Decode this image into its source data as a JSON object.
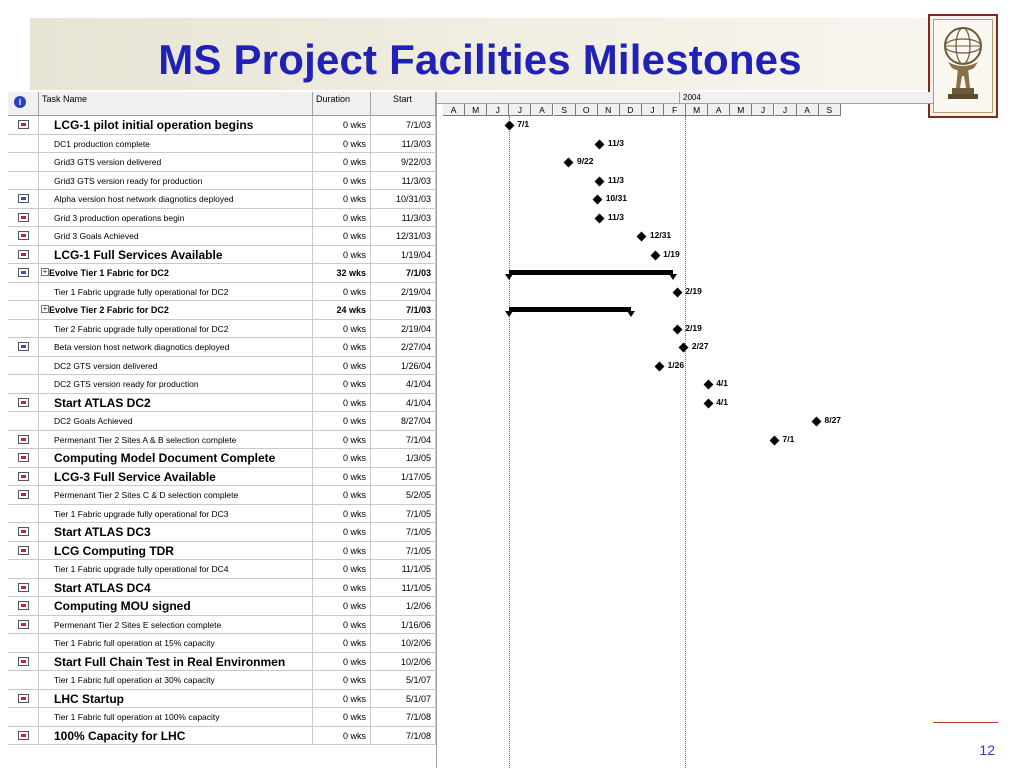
{
  "slide": {
    "title": "MS Project Facilities Milestones",
    "page_number": "12"
  },
  "table": {
    "headers": {
      "info": "i",
      "task": "Task Name",
      "duration": "Duration",
      "start": "Start"
    },
    "rows": [
      {
        "name": "LCG-1 pilot initial operation begins",
        "duration": "0 wks",
        "start": "7/1/03",
        "style": "bold",
        "icon": "red"
      },
      {
        "name": "DC1 production complete",
        "duration": "0 wks",
        "start": "11/3/03",
        "style": "normal",
        "icon": ""
      },
      {
        "name": "Grid3 GTS version delivered",
        "duration": "0 wks",
        "start": "9/22/03",
        "style": "normal",
        "icon": ""
      },
      {
        "name": "Grid3 GTS version ready for production",
        "duration": "0 wks",
        "start": "11/3/03",
        "style": "normal",
        "icon": ""
      },
      {
        "name": "Alpha version host network diagnotics deployed",
        "duration": "0 wks",
        "start": "10/31/03",
        "style": "normal",
        "icon": "blue"
      },
      {
        "name": "Grid 3 production operations begin",
        "duration": "0 wks",
        "start": "11/3/03",
        "style": "normal",
        "icon": "red"
      },
      {
        "name": "Grid 3 Goals Achieved",
        "duration": "0 wks",
        "start": "12/31/03",
        "style": "normal",
        "icon": "red"
      },
      {
        "name": "LCG-1 Full Services Available",
        "duration": "0 wks",
        "start": "1/19/04",
        "style": "bold",
        "icon": "red"
      },
      {
        "name": "Evolve Tier 1 Fabric for DC2",
        "duration": "32 wks",
        "start": "7/1/03",
        "style": "summary",
        "icon": "blue"
      },
      {
        "name": "Tier 1 Fabric upgrade fully operational for DC2",
        "duration": "0 wks",
        "start": "2/19/04",
        "style": "normal",
        "icon": ""
      },
      {
        "name": "Evolve Tier 2 Fabric for DC2",
        "duration": "24 wks",
        "start": "7/1/03",
        "style": "summary",
        "icon": ""
      },
      {
        "name": "Tier 2 Fabric upgrade fully operational for DC2",
        "duration": "0 wks",
        "start": "2/19/04",
        "style": "normal",
        "icon": ""
      },
      {
        "name": "Beta version host network diagnotics deployed",
        "duration": "0 wks",
        "start": "2/27/04",
        "style": "normal",
        "icon": "blue"
      },
      {
        "name": "DC2 GTS version delivered",
        "duration": "0 wks",
        "start": "1/26/04",
        "style": "normal",
        "icon": ""
      },
      {
        "name": "DC2 GTS version ready for production",
        "duration": "0 wks",
        "start": "4/1/04",
        "style": "normal",
        "icon": ""
      },
      {
        "name": "Start ATLAS DC2",
        "duration": "0 wks",
        "start": "4/1/04",
        "style": "bold",
        "icon": "red"
      },
      {
        "name": "DC2 Goals Achieved",
        "duration": "0 wks",
        "start": "8/27/04",
        "style": "normal",
        "icon": ""
      },
      {
        "name": "Permenant Tier 2 Sites A & B selection complete",
        "duration": "0 wks",
        "start": "7/1/04",
        "style": "normal",
        "icon": "red"
      },
      {
        "name": "Computing Model  Document Complete",
        "duration": "0 wks",
        "start": "1/3/05",
        "style": "bold",
        "icon": "red"
      },
      {
        "name": "LCG-3 Full Service Available",
        "duration": "0 wks",
        "start": "1/17/05",
        "style": "bold",
        "icon": "red"
      },
      {
        "name": "Permenant Tier 2 Sites C & D selection complete",
        "duration": "0 wks",
        "start": "5/2/05",
        "style": "normal",
        "icon": "red"
      },
      {
        "name": "Tier 1 Fabric upgrade fully operational for DC3",
        "duration": "0 wks",
        "start": "7/1/05",
        "style": "normal",
        "icon": ""
      },
      {
        "name": "Start ATLAS DC3",
        "duration": "0 wks",
        "start": "7/1/05",
        "style": "bold",
        "icon": "red"
      },
      {
        "name": "LCG Computing TDR",
        "duration": "0 wks",
        "start": "7/1/05",
        "style": "bold",
        "icon": "red"
      },
      {
        "name": "Tier 1 Fabric upgrade fully operational for DC4",
        "duration": "0 wks",
        "start": "11/1/05",
        "style": "normal",
        "icon": ""
      },
      {
        "name": "Start ATLAS DC4",
        "duration": "0 wks",
        "start": "11/1/05",
        "style": "bold",
        "icon": "red"
      },
      {
        "name": "Computing MOU signed",
        "duration": "0 wks",
        "start": "1/2/06",
        "style": "bold",
        "icon": "red"
      },
      {
        "name": "Permenant Tier 2 Sites E selection complete",
        "duration": "0 wks",
        "start": "1/16/06",
        "style": "normal",
        "icon": "red"
      },
      {
        "name": "Tier 1 Fabric full operation at 15% capacity",
        "duration": "0 wks",
        "start": "10/2/06",
        "style": "normal",
        "icon": ""
      },
      {
        "name": "Start Full Chain Test in Real Environmen",
        "duration": "0 wks",
        "start": "10/2/06",
        "style": "bold",
        "icon": "red"
      },
      {
        "name": "Tier 1 Fabric full operation at 30% capacity",
        "duration": "0 wks",
        "start": "5/1/07",
        "style": "normal",
        "icon": ""
      },
      {
        "name": "LHC Startup",
        "duration": "0 wks",
        "start": "5/1/07",
        "style": "bold",
        "icon": "red"
      },
      {
        "name": "Tier 1 Fabric full operation at 100% capacity",
        "duration": "0 wks",
        "start": "7/1/08",
        "style": "normal",
        "icon": ""
      },
      {
        "name": "100% Capacity for LHC",
        "duration": "0 wks",
        "start": "7/1/08",
        "style": "bold",
        "icon": "red"
      }
    ]
  },
  "gantt": {
    "year_label": "2004",
    "months": [
      "A",
      "M",
      "J",
      "J",
      "A",
      "S",
      "O",
      "N",
      "D",
      "J",
      "F",
      "M",
      "A",
      "M",
      "J",
      "J",
      "A",
      "S"
    ],
    "milestones": [
      {
        "row": 0,
        "month": 3.0,
        "label": "7/1"
      },
      {
        "row": 1,
        "month": 7.1,
        "label": "11/3"
      },
      {
        "row": 2,
        "month": 5.7,
        "label": "9/22"
      },
      {
        "row": 3,
        "month": 7.1,
        "label": "11/3"
      },
      {
        "row": 4,
        "month": 7.0,
        "label": "10/31"
      },
      {
        "row": 5,
        "month": 7.1,
        "label": "11/3"
      },
      {
        "row": 6,
        "month": 9.0,
        "label": "12/31"
      },
      {
        "row": 7,
        "month": 9.6,
        "label": "1/19"
      },
      {
        "row": 9,
        "month": 10.6,
        "label": "2/19"
      },
      {
        "row": 11,
        "month": 10.6,
        "label": "2/19"
      },
      {
        "row": 12,
        "month": 10.9,
        "label": "2/27"
      },
      {
        "row": 13,
        "month": 9.8,
        "label": "1/26"
      },
      {
        "row": 14,
        "month": 12.0,
        "label": "4/1"
      },
      {
        "row": 15,
        "month": 12.0,
        "label": "4/1"
      },
      {
        "row": 16,
        "month": 16.9,
        "label": "8/27"
      },
      {
        "row": 17,
        "month": 15.0,
        "label": "7/1"
      }
    ],
    "summary_bars": [
      {
        "row": 8,
        "start": 3.0,
        "end": 10.4
      },
      {
        "row": 10,
        "start": 3.0,
        "end": 8.5
      }
    ]
  }
}
